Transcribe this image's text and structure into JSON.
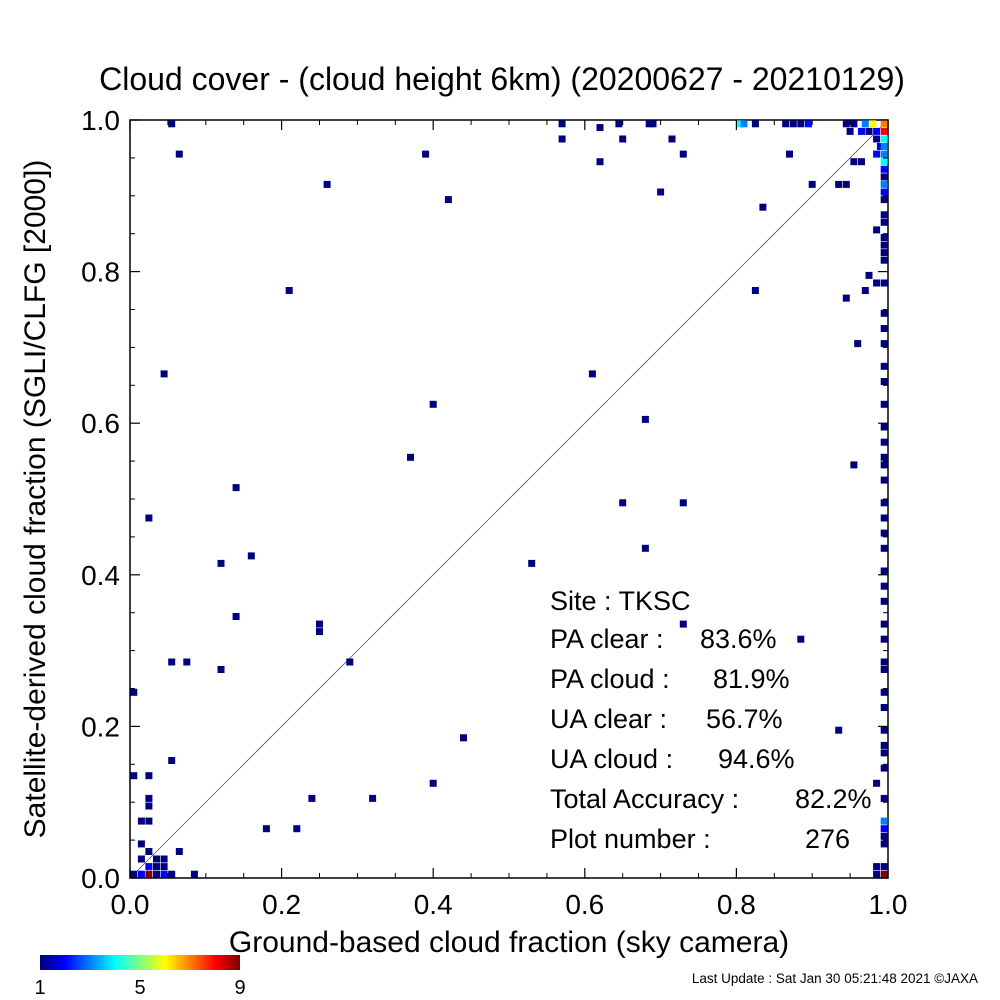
{
  "chart_data": {
    "type": "heatmap",
    "title": "Cloud cover - (cloud height 6km)  (20200627 - 20210129)",
    "xlabel": "Ground-based cloud fraction (sky camera)",
    "ylabel": "Satellite-derived cloud fraction (SGLI/CLFG [2000])",
    "xlim": [
      0,
      1
    ],
    "ylim": [
      0,
      1
    ],
    "xticks": [
      "0.0",
      "0.2",
      "0.4",
      "0.6",
      "0.8",
      "1.0"
    ],
    "yticks": [
      "0.0",
      "0.2",
      "0.4",
      "0.6",
      "0.8",
      "1.0"
    ],
    "diagonal_line": true,
    "colorbar": {
      "min": 1,
      "max": 9,
      "tick_labels": [
        "1",
        "5",
        "9"
      ],
      "colors": [
        "#00007f",
        "#0000ff",
        "#0080ff",
        "#00ffff",
        "#80ff80",
        "#ffff00",
        "#ff8000",
        "#ff0000",
        "#7f0000"
      ]
    },
    "stats": [
      {
        "label": "Site : TKSC",
        "value": ""
      },
      {
        "label": "PA clear :",
        "value": "83.6%"
      },
      {
        "label": "PA cloud :",
        "value": "81.9%"
      },
      {
        "label": "UA clear :",
        "value": "56.7%"
      },
      {
        "label": "UA cloud :",
        "value": "94.6%"
      },
      {
        "label": "Total Accuracy :",
        "value": "82.2%"
      },
      {
        "label": "Plot number :",
        "value": "276"
      }
    ],
    "points": [
      {
        "x": 0.055,
        "y": 0.995,
        "c": 1
      },
      {
        "x": 0.57,
        "y": 0.995,
        "c": 1
      },
      {
        "x": 0.62,
        "y": 0.99,
        "c": 1
      },
      {
        "x": 0.645,
        "y": 0.995,
        "c": 1
      },
      {
        "x": 0.685,
        "y": 0.995,
        "c": 1
      },
      {
        "x": 0.69,
        "y": 0.995,
        "c": 1
      },
      {
        "x": 0.805,
        "y": 0.995,
        "c": 4
      },
      {
        "x": 0.81,
        "y": 0.995,
        "c": 3
      },
      {
        "x": 0.825,
        "y": 0.995,
        "c": 1
      },
      {
        "x": 0.865,
        "y": 0.995,
        "c": 1
      },
      {
        "x": 0.875,
        "y": 0.995,
        "c": 1
      },
      {
        "x": 0.885,
        "y": 0.995,
        "c": 1
      },
      {
        "x": 0.895,
        "y": 0.995,
        "c": 2
      },
      {
        "x": 0.945,
        "y": 0.995,
        "c": 1
      },
      {
        "x": 0.955,
        "y": 0.995,
        "c": 1
      },
      {
        "x": 0.97,
        "y": 0.995,
        "c": 3
      },
      {
        "x": 0.98,
        "y": 0.995,
        "c": 6
      },
      {
        "x": 0.995,
        "y": 0.995,
        "c": 7
      },
      {
        "x": 0.95,
        "y": 0.985,
        "c": 1
      },
      {
        "x": 0.965,
        "y": 0.985,
        "c": 2
      },
      {
        "x": 0.975,
        "y": 0.985,
        "c": 1
      },
      {
        "x": 0.985,
        "y": 0.985,
        "c": 2
      },
      {
        "x": 0.995,
        "y": 0.985,
        "c": 8
      },
      {
        "x": 0.57,
        "y": 0.975,
        "c": 1
      },
      {
        "x": 0.65,
        "y": 0.975,
        "c": 1
      },
      {
        "x": 0.715,
        "y": 0.975,
        "c": 1
      },
      {
        "x": 0.985,
        "y": 0.975,
        "c": 1
      },
      {
        "x": 0.995,
        "y": 0.975,
        "c": 4
      },
      {
        "x": 0.99,
        "y": 0.965,
        "c": 2
      },
      {
        "x": 0.995,
        "y": 0.965,
        "c": 3
      },
      {
        "x": 0.065,
        "y": 0.955,
        "c": 1
      },
      {
        "x": 0.39,
        "y": 0.955,
        "c": 1
      },
      {
        "x": 0.73,
        "y": 0.955,
        "c": 1
      },
      {
        "x": 0.87,
        "y": 0.955,
        "c": 1
      },
      {
        "x": 0.985,
        "y": 0.955,
        "c": 2
      },
      {
        "x": 0.995,
        "y": 0.955,
        "c": 3
      },
      {
        "x": 0.62,
        "y": 0.945,
        "c": 1
      },
      {
        "x": 0.955,
        "y": 0.945,
        "c": 1
      },
      {
        "x": 0.965,
        "y": 0.945,
        "c": 1
      },
      {
        "x": 0.995,
        "y": 0.945,
        "c": 4
      },
      {
        "x": 0.995,
        "y": 0.935,
        "c": 2
      },
      {
        "x": 0.995,
        "y": 0.925,
        "c": 1
      },
      {
        "x": 0.26,
        "y": 0.915,
        "c": 1
      },
      {
        "x": 0.9,
        "y": 0.915,
        "c": 1
      },
      {
        "x": 0.935,
        "y": 0.915,
        "c": 1
      },
      {
        "x": 0.945,
        "y": 0.915,
        "c": 1
      },
      {
        "x": 0.995,
        "y": 0.915,
        "c": 3
      },
      {
        "x": 0.7,
        "y": 0.905,
        "c": 1
      },
      {
        "x": 0.995,
        "y": 0.905,
        "c": 2
      },
      {
        "x": 0.42,
        "y": 0.895,
        "c": 1
      },
      {
        "x": 0.995,
        "y": 0.895,
        "c": 1
      },
      {
        "x": 0.835,
        "y": 0.885,
        "c": 1
      },
      {
        "x": 0.995,
        "y": 0.875,
        "c": 1
      },
      {
        "x": 0.985,
        "y": 0.855,
        "c": 1
      },
      {
        "x": 0.995,
        "y": 0.865,
        "c": 1
      },
      {
        "x": 0.995,
        "y": 0.845,
        "c": 1
      },
      {
        "x": 0.995,
        "y": 0.835,
        "c": 1
      },
      {
        "x": 0.995,
        "y": 0.825,
        "c": 1
      },
      {
        "x": 0.995,
        "y": 0.815,
        "c": 1
      },
      {
        "x": 0.975,
        "y": 0.795,
        "c": 1
      },
      {
        "x": 0.985,
        "y": 0.785,
        "c": 1
      },
      {
        "x": 0.995,
        "y": 0.785,
        "c": 1
      },
      {
        "x": 0.21,
        "y": 0.775,
        "c": 1
      },
      {
        "x": 0.825,
        "y": 0.775,
        "c": 1
      },
      {
        "x": 0.97,
        "y": 0.775,
        "c": 1
      },
      {
        "x": 0.945,
        "y": 0.765,
        "c": 1
      },
      {
        "x": 0.995,
        "y": 0.745,
        "c": 1
      },
      {
        "x": 0.995,
        "y": 0.725,
        "c": 1
      },
      {
        "x": 0.96,
        "y": 0.705,
        "c": 1
      },
      {
        "x": 0.995,
        "y": 0.705,
        "c": 1
      },
      {
        "x": 0.995,
        "y": 0.675,
        "c": 1
      },
      {
        "x": 0.045,
        "y": 0.665,
        "c": 1
      },
      {
        "x": 0.61,
        "y": 0.665,
        "c": 1
      },
      {
        "x": 0.995,
        "y": 0.655,
        "c": 1
      },
      {
        "x": 0.4,
        "y": 0.625,
        "c": 1
      },
      {
        "x": 0.995,
        "y": 0.625,
        "c": 1
      },
      {
        "x": 0.68,
        "y": 0.605,
        "c": 1
      },
      {
        "x": 0.995,
        "y": 0.595,
        "c": 1
      },
      {
        "x": 0.995,
        "y": 0.575,
        "c": 1
      },
      {
        "x": 0.37,
        "y": 0.555,
        "c": 1
      },
      {
        "x": 0.995,
        "y": 0.555,
        "c": 1
      },
      {
        "x": 0.995,
        "y": 0.545,
        "c": 1
      },
      {
        "x": 0.955,
        "y": 0.545,
        "c": 1
      },
      {
        "x": 0.995,
        "y": 0.525,
        "c": 1
      },
      {
        "x": 0.14,
        "y": 0.515,
        "c": 1
      },
      {
        "x": 0.65,
        "y": 0.495,
        "c": 1
      },
      {
        "x": 0.73,
        "y": 0.495,
        "c": 1
      },
      {
        "x": 0.995,
        "y": 0.495,
        "c": 1
      },
      {
        "x": 0.025,
        "y": 0.475,
        "c": 1
      },
      {
        "x": 0.995,
        "y": 0.475,
        "c": 1
      },
      {
        "x": 0.995,
        "y": 0.455,
        "c": 1
      },
      {
        "x": 0.68,
        "y": 0.435,
        "c": 1
      },
      {
        "x": 0.995,
        "y": 0.435,
        "c": 1
      },
      {
        "x": 0.16,
        "y": 0.425,
        "c": 1
      },
      {
        "x": 0.12,
        "y": 0.415,
        "c": 1
      },
      {
        "x": 0.53,
        "y": 0.415,
        "c": 1
      },
      {
        "x": 0.995,
        "y": 0.405,
        "c": 1
      },
      {
        "x": 0.995,
        "y": 0.385,
        "c": 1
      },
      {
        "x": 0.995,
        "y": 0.365,
        "c": 1
      },
      {
        "x": 0.14,
        "y": 0.345,
        "c": 1
      },
      {
        "x": 0.73,
        "y": 0.335,
        "c": 1
      },
      {
        "x": 0.25,
        "y": 0.335,
        "c": 1
      },
      {
        "x": 0.25,
        "y": 0.325,
        "c": 1
      },
      {
        "x": 0.995,
        "y": 0.335,
        "c": 1
      },
      {
        "x": 0.885,
        "y": 0.315,
        "c": 1
      },
      {
        "x": 0.995,
        "y": 0.315,
        "c": 1
      },
      {
        "x": 0.055,
        "y": 0.285,
        "c": 1
      },
      {
        "x": 0.075,
        "y": 0.285,
        "c": 1
      },
      {
        "x": 0.29,
        "y": 0.285,
        "c": 1
      },
      {
        "x": 0.995,
        "y": 0.285,
        "c": 1
      },
      {
        "x": 0.995,
        "y": 0.275,
        "c": 1
      },
      {
        "x": 0.12,
        "y": 0.275,
        "c": 1
      },
      {
        "x": 0.005,
        "y": 0.245,
        "c": 1
      },
      {
        "x": 0.995,
        "y": 0.245,
        "c": 1
      },
      {
        "x": 0.995,
        "y": 0.225,
        "c": 1
      },
      {
        "x": 0.935,
        "y": 0.195,
        "c": 1
      },
      {
        "x": 0.995,
        "y": 0.195,
        "c": 1
      },
      {
        "x": 0.44,
        "y": 0.185,
        "c": 1
      },
      {
        "x": 0.995,
        "y": 0.175,
        "c": 1
      },
      {
        "x": 0.055,
        "y": 0.155,
        "c": 1
      },
      {
        "x": 0.995,
        "y": 0.165,
        "c": 1
      },
      {
        "x": 0.995,
        "y": 0.145,
        "c": 1
      },
      {
        "x": 0.005,
        "y": 0.135,
        "c": 1
      },
      {
        "x": 0.025,
        "y": 0.135,
        "c": 1
      },
      {
        "x": 0.4,
        "y": 0.125,
        "c": 1
      },
      {
        "x": 0.985,
        "y": 0.125,
        "c": 1
      },
      {
        "x": 0.025,
        "y": 0.105,
        "c": 1
      },
      {
        "x": 0.025,
        "y": 0.095,
        "c": 1
      },
      {
        "x": 0.24,
        "y": 0.105,
        "c": 1
      },
      {
        "x": 0.32,
        "y": 0.105,
        "c": 1
      },
      {
        "x": 0.995,
        "y": 0.105,
        "c": 1
      },
      {
        "x": 0.015,
        "y": 0.075,
        "c": 1
      },
      {
        "x": 0.025,
        "y": 0.075,
        "c": 1
      },
      {
        "x": 0.18,
        "y": 0.065,
        "c": 1
      },
      {
        "x": 0.22,
        "y": 0.065,
        "c": 1
      },
      {
        "x": 0.995,
        "y": 0.075,
        "c": 3
      },
      {
        "x": 0.995,
        "y": 0.065,
        "c": 2
      },
      {
        "x": 0.995,
        "y": 0.055,
        "c": 1
      },
      {
        "x": 0.995,
        "y": 0.045,
        "c": 1
      },
      {
        "x": 0.015,
        "y": 0.045,
        "c": 1
      },
      {
        "x": 0.025,
        "y": 0.035,
        "c": 1
      },
      {
        "x": 0.065,
        "y": 0.035,
        "c": 1
      },
      {
        "x": 0.015,
        "y": 0.025,
        "c": 1
      },
      {
        "x": 0.035,
        "y": 0.025,
        "c": 1
      },
      {
        "x": 0.045,
        "y": 0.025,
        "c": 1
      },
      {
        "x": 0.025,
        "y": 0.015,
        "c": 2
      },
      {
        "x": 0.035,
        "y": 0.015,
        "c": 1
      },
      {
        "x": 0.045,
        "y": 0.015,
        "c": 1
      },
      {
        "x": 0.985,
        "y": 0.015,
        "c": 1
      },
      {
        "x": 0.995,
        "y": 0.015,
        "c": 1
      },
      {
        "x": 0.005,
        "y": 0.005,
        "c": 1
      },
      {
        "x": 0.015,
        "y": 0.005,
        "c": 2
      },
      {
        "x": 0.025,
        "y": 0.005,
        "c": 9
      },
      {
        "x": 0.035,
        "y": 0.005,
        "c": 1
      },
      {
        "x": 0.045,
        "y": 0.005,
        "c": 2
      },
      {
        "x": 0.055,
        "y": 0.005,
        "c": 1
      },
      {
        "x": 0.085,
        "y": 0.005,
        "c": 1
      },
      {
        "x": 0.985,
        "y": 0.005,
        "c": 1
      },
      {
        "x": 0.995,
        "y": 0.005,
        "c": 9
      }
    ]
  },
  "footer": {
    "last_update": "Last Update : Sat Jan 30 05:21:48 2021  ©JAXA"
  }
}
